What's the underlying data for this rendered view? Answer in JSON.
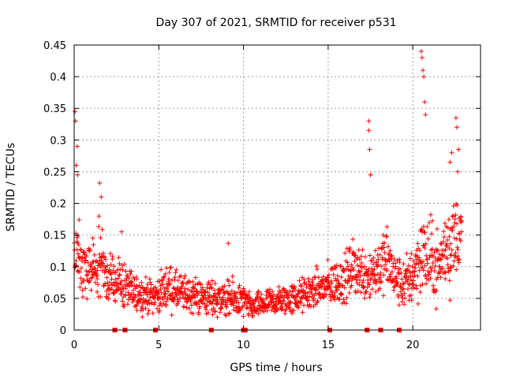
{
  "chart_data": {
    "type": "scatter",
    "title": "Day 307 of 2021, SRMTID for receiver p531",
    "xlabel": "GPS time / hours",
    "ylabel": "SRMTID / TECUs",
    "xlim": [
      0,
      24
    ],
    "ylim": [
      0,
      0.45
    ],
    "x_ticks": [
      0,
      5,
      10,
      15,
      20
    ],
    "x_tick_labels": [
      "0",
      "5",
      "10",
      "15",
      "20"
    ],
    "y_ticks": [
      0,
      0.05,
      0.1,
      0.15,
      0.2,
      0.25,
      0.3,
      0.35,
      0.4,
      0.45
    ],
    "y_tick_labels": [
      "0",
      "0.05",
      "0.1",
      "0.15",
      "0.2",
      "0.25",
      "0.3",
      "0.35",
      "0.4",
      "0.45"
    ],
    "grid": true,
    "marker": "plus",
    "color": "#ff0000",
    "envelope": {
      "x": [
        0,
        0.3,
        0.8,
        1.3,
        1.6,
        2.0,
        2.5,
        3.0,
        3.5,
        4.0,
        5.0,
        5.5,
        6.0,
        7.0,
        8.0,
        9.0,
        10.0,
        10.5,
        11.0,
        12.0,
        13.0,
        14.0,
        15.0,
        16.0,
        16.5,
        17.0,
        17.5,
        18.0,
        18.5,
        19.0,
        19.5,
        20.0,
        20.5,
        21.0,
        21.5,
        22.0,
        22.5,
        22.9
      ],
      "center": [
        0.13,
        0.11,
        0.1,
        0.1,
        0.12,
        0.08,
        0.08,
        0.07,
        0.06,
        0.055,
        0.055,
        0.07,
        0.06,
        0.055,
        0.05,
        0.05,
        0.045,
        0.035,
        0.04,
        0.045,
        0.05,
        0.06,
        0.07,
        0.08,
        0.1,
        0.09,
        0.09,
        0.1,
        0.11,
        0.08,
        0.07,
        0.09,
        0.12,
        0.11,
        0.1,
        0.13,
        0.15,
        0.15
      ],
      "spread": [
        0.05,
        0.04,
        0.035,
        0.035,
        0.05,
        0.03,
        0.03,
        0.028,
        0.022,
        0.02,
        0.02,
        0.028,
        0.024,
        0.022,
        0.022,
        0.024,
        0.02,
        0.014,
        0.016,
        0.018,
        0.02,
        0.022,
        0.026,
        0.03,
        0.034,
        0.032,
        0.036,
        0.036,
        0.04,
        0.03,
        0.03,
        0.04,
        0.05,
        0.05,
        0.04,
        0.05,
        0.05,
        0.05
      ]
    },
    "notable_points": [
      {
        "x": 0.05,
        "y": 0.345
      },
      {
        "x": 0.08,
        "y": 0.33
      },
      {
        "x": 0.18,
        "y": 0.29
      },
      {
        "x": 0.12,
        "y": 0.26
      },
      {
        "x": 0.2,
        "y": 0.245
      },
      {
        "x": 1.5,
        "y": 0.232
      },
      {
        "x": 1.6,
        "y": 0.21
      },
      {
        "x": 17.4,
        "y": 0.33
      },
      {
        "x": 17.4,
        "y": 0.315
      },
      {
        "x": 17.45,
        "y": 0.285
      },
      {
        "x": 17.5,
        "y": 0.245
      },
      {
        "x": 20.5,
        "y": 0.44
      },
      {
        "x": 20.55,
        "y": 0.43
      },
      {
        "x": 20.6,
        "y": 0.41
      },
      {
        "x": 20.65,
        "y": 0.4
      },
      {
        "x": 20.7,
        "y": 0.36
      },
      {
        "x": 20.75,
        "y": 0.34
      },
      {
        "x": 22.55,
        "y": 0.335
      },
      {
        "x": 22.6,
        "y": 0.32
      },
      {
        "x": 22.7,
        "y": 0.285
      },
      {
        "x": 22.65,
        "y": 0.25
      },
      {
        "x": 22.3,
        "y": 0.28
      },
      {
        "x": 22.2,
        "y": 0.265
      },
      {
        "x": 9.1,
        "y": 0.137
      },
      {
        "x": 2.8,
        "y": 0.155
      },
      {
        "x": 22.2,
        "y": 0.047
      }
    ],
    "zero_markers_x": [
      2.4,
      3.0,
      4.8,
      8.1,
      10.0,
      10.1,
      15.1,
      17.3,
      18.1,
      19.2
    ]
  }
}
